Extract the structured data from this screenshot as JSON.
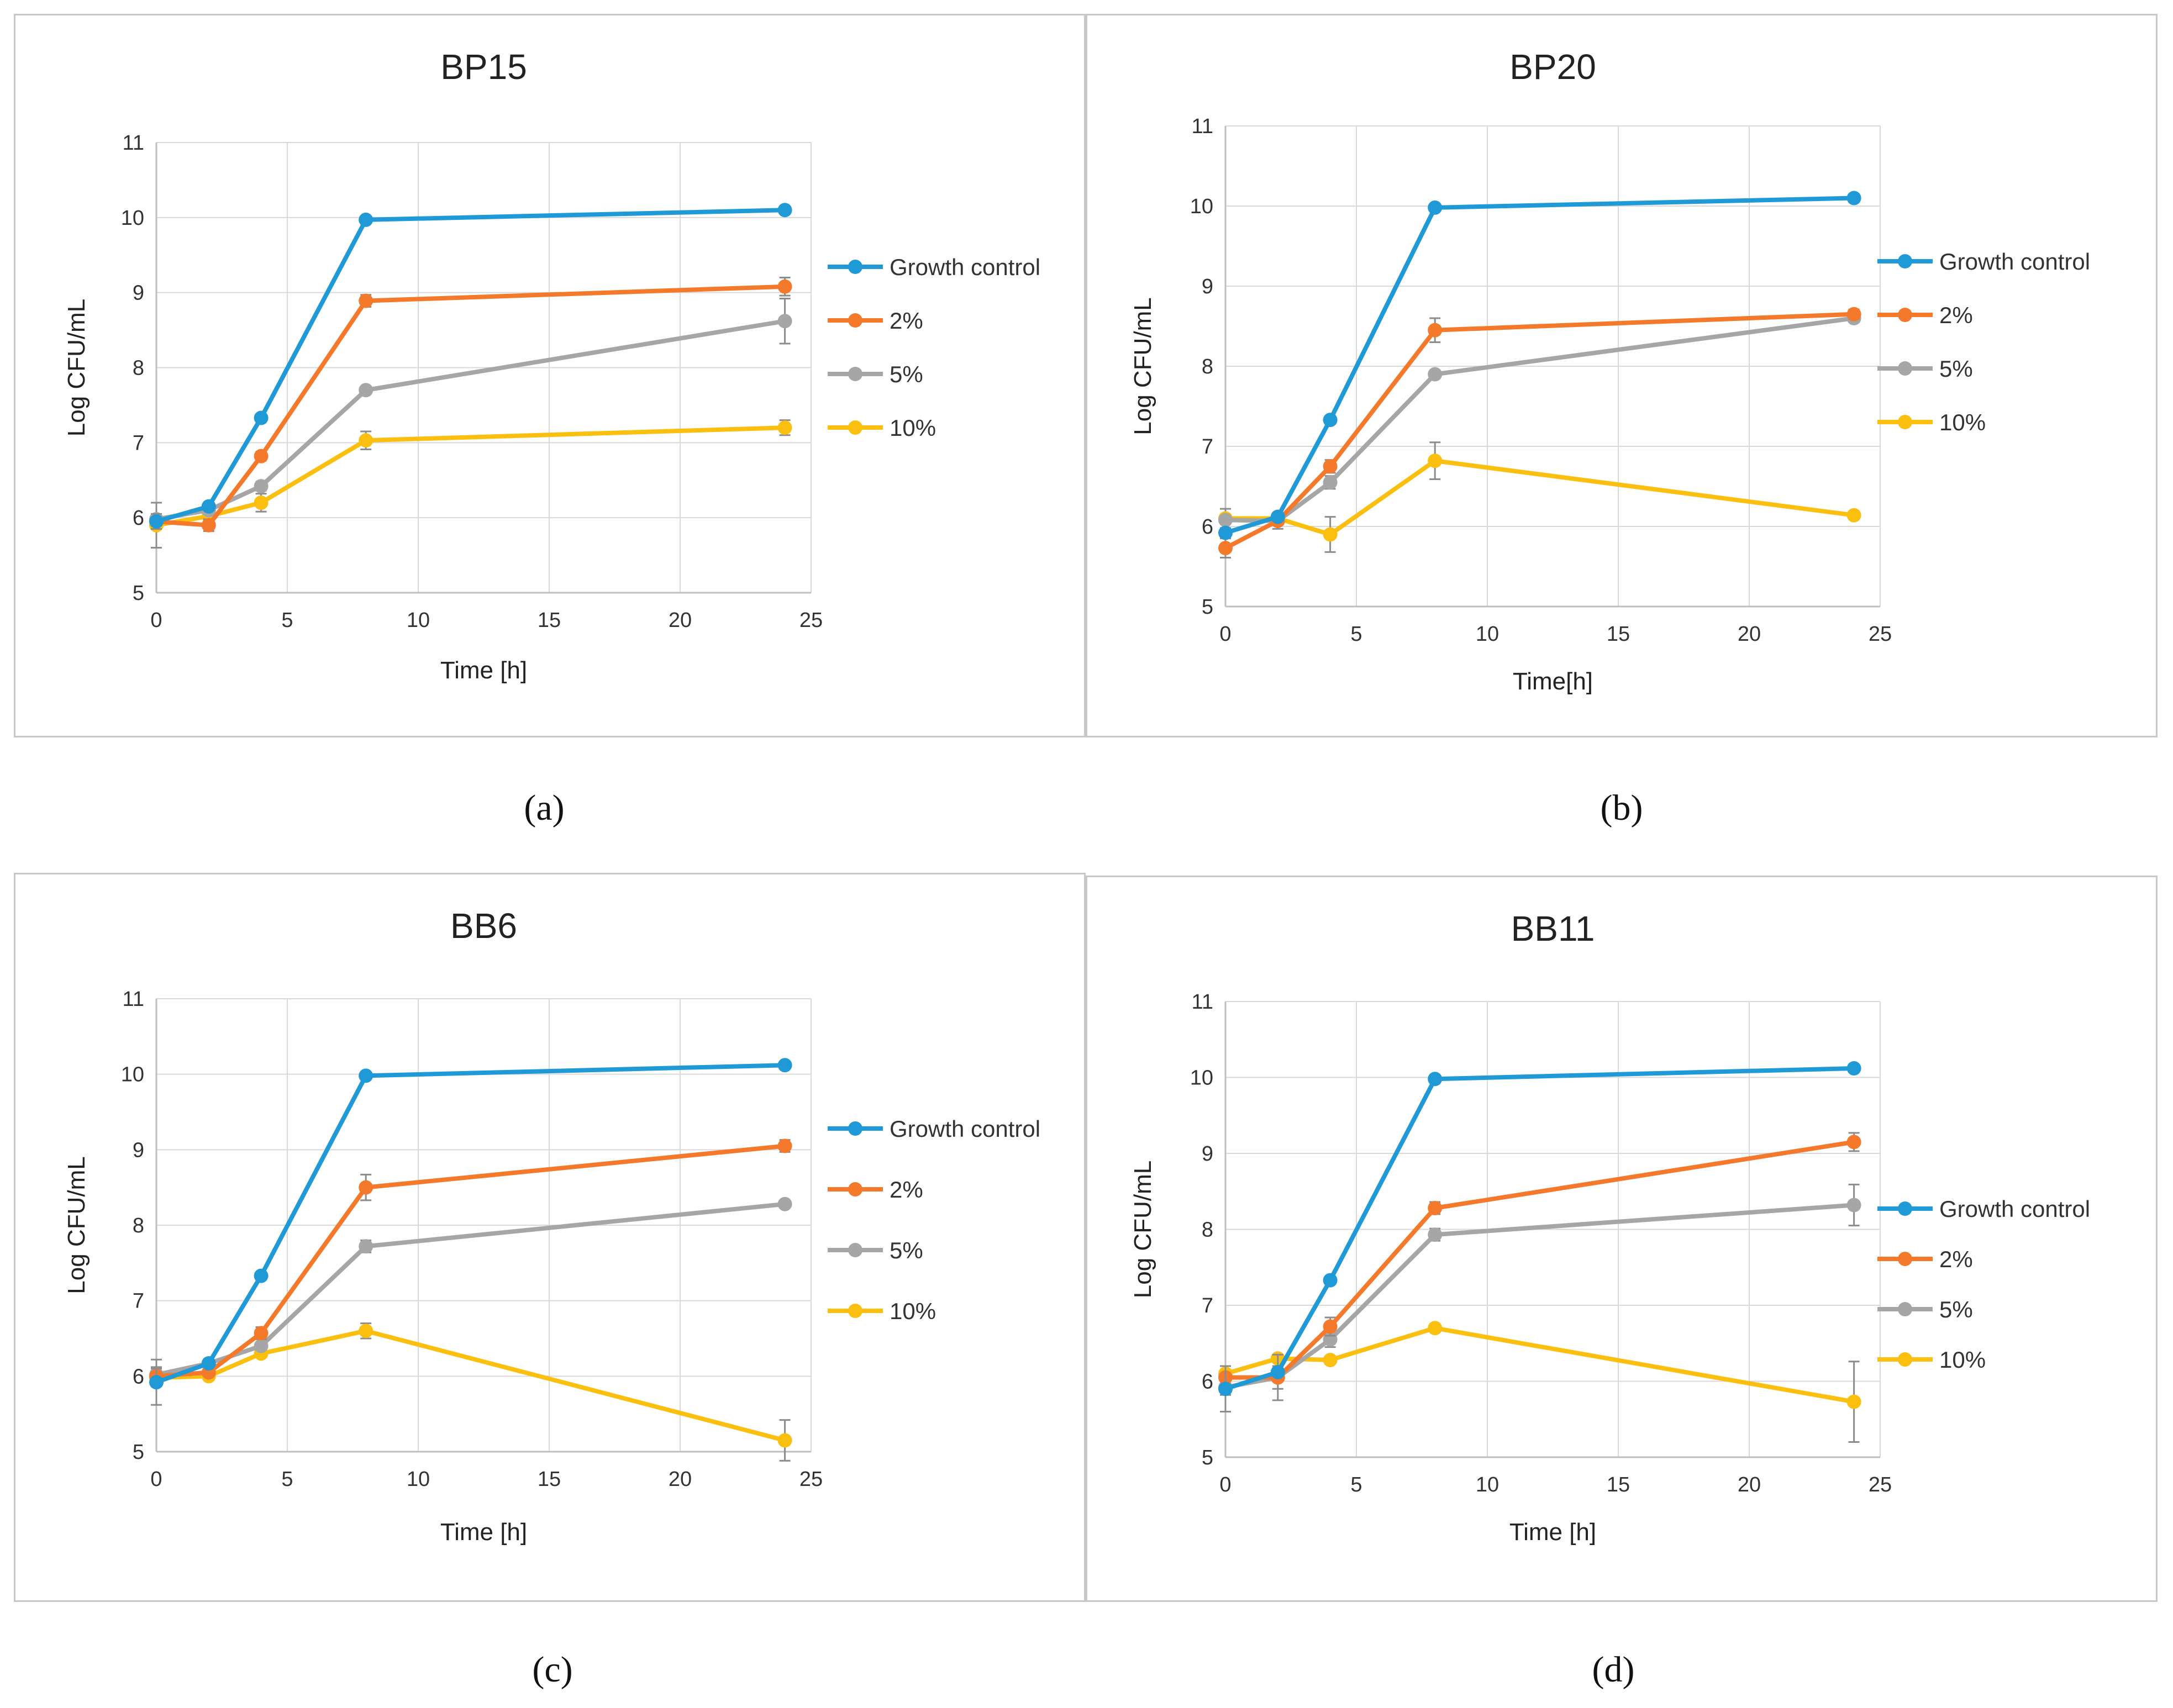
{
  "captions": [
    "(a)",
    "(b)",
    "(c)",
    "(d)"
  ],
  "colors": {
    "Growth control": "#1f9ad6",
    "2%": "#f4792a",
    "5%": "#a6a6a6",
    "10%": "#fbbf10",
    "grid": "#d9d9d9",
    "axis": "#bfbfbf",
    "error": "#8c8c8c"
  },
  "chart_data": [
    {
      "type": "line",
      "title": "BP15",
      "xlabel": "Time [h]",
      "ylabel": "Log CFU/mL",
      "xlim": [
        0,
        25
      ],
      "ylim": [
        5,
        11
      ],
      "xticks": [
        0,
        5,
        10,
        15,
        20,
        25
      ],
      "yticks": [
        5,
        6,
        7,
        8,
        9,
        10,
        11
      ],
      "grid": true,
      "legend": "right",
      "x": [
        0,
        2,
        4,
        8,
        24
      ],
      "series": [
        {
          "name": "Growth control",
          "values": [
            5.95,
            6.15,
            7.33,
            9.97,
            10.1
          ],
          "errors": [
            0.05,
            0.05,
            0.05,
            0.04,
            0.05
          ]
        },
        {
          "name": "2%",
          "values": [
            5.95,
            5.9,
            6.82,
            8.89,
            9.08
          ],
          "errors": [
            0.1,
            0.08,
            0.06,
            0.08,
            0.12
          ]
        },
        {
          "name": "5%",
          "values": [
            5.98,
            6.1,
            6.42,
            7.7,
            8.62
          ],
          "errors": [
            0.05,
            0.05,
            0.06,
            0.05,
            0.3
          ]
        },
        {
          "name": "10%",
          "values": [
            5.9,
            6.02,
            6.2,
            7.03,
            7.2
          ],
          "errors": [
            0.3,
            0.05,
            0.12,
            0.12,
            0.1
          ]
        }
      ]
    },
    {
      "type": "line",
      "title": "BP20",
      "xlabel": "Time[h]",
      "ylabel": "Log CFU/mL",
      "xlim": [
        0,
        25
      ],
      "ylim": [
        5,
        11
      ],
      "xticks": [
        0,
        5,
        10,
        15,
        20,
        25
      ],
      "yticks": [
        5,
        6,
        7,
        8,
        9,
        10,
        11
      ],
      "grid": true,
      "legend": "right",
      "x": [
        0,
        2,
        4,
        8,
        24
      ],
      "series": [
        {
          "name": "Growth control",
          "values": [
            5.92,
            6.12,
            7.33,
            9.98,
            10.1
          ],
          "errors": [
            0.05,
            0.05,
            0.05,
            0.04,
            0.05
          ]
        },
        {
          "name": "2%",
          "values": [
            5.73,
            6.07,
            6.75,
            8.45,
            8.65
          ],
          "errors": [
            0.12,
            0.1,
            0.08,
            0.15,
            0.06
          ]
        },
        {
          "name": "5%",
          "values": [
            6.08,
            6.07,
            6.55,
            7.9,
            8.6
          ],
          "errors": [
            0.05,
            0.05,
            0.08,
            0.05,
            0.05
          ]
        },
        {
          "name": "10%",
          "values": [
            6.1,
            6.1,
            5.9,
            6.82,
            6.14
          ],
          "errors": [
            0.12,
            0.05,
            0.22,
            0.23,
            0.05
          ]
        }
      ]
    },
    {
      "type": "line",
      "title": "BB6",
      "xlabel": "Time [h]",
      "ylabel": "Log CFU/mL",
      "xlim": [
        0,
        25
      ],
      "ylim": [
        5,
        11
      ],
      "xticks": [
        0,
        5,
        10,
        15,
        20,
        25
      ],
      "yticks": [
        5,
        6,
        7,
        8,
        9,
        10,
        11
      ],
      "grid": true,
      "legend": "right",
      "x": [
        0,
        2,
        4,
        8,
        24
      ],
      "series": [
        {
          "name": "Growth control",
          "values": [
            5.92,
            6.17,
            7.33,
            9.98,
            10.12
          ],
          "errors": [
            0.3,
            0.05,
            0.05,
            0.04,
            0.05
          ]
        },
        {
          "name": "2%",
          "values": [
            6.0,
            6.05,
            6.57,
            8.5,
            9.05
          ],
          "errors": [
            0.1,
            0.05,
            0.08,
            0.17,
            0.08
          ]
        },
        {
          "name": "5%",
          "values": [
            6.02,
            6.17,
            6.4,
            7.72,
            8.28
          ],
          "errors": [
            0.1,
            0.05,
            0.05,
            0.08,
            0.05
          ]
        },
        {
          "name": "10%",
          "values": [
            5.98,
            6.0,
            6.3,
            6.6,
            5.15
          ],
          "errors": [
            0.05,
            0.05,
            0.05,
            0.1,
            0.27
          ]
        }
      ]
    },
    {
      "type": "line",
      "title": "BB11",
      "xlabel": "Time [h]",
      "ylabel": "Log CFU/mL",
      "xlim": [
        0,
        25
      ],
      "ylim": [
        5,
        11
      ],
      "xticks": [
        0,
        5,
        10,
        15,
        20,
        25
      ],
      "yticks": [
        5,
        6,
        7,
        8,
        9,
        10,
        11
      ],
      "grid": true,
      "legend": "right",
      "x": [
        0,
        2,
        4,
        8,
        24
      ],
      "series": [
        {
          "name": "Growth control",
          "values": [
            5.9,
            6.12,
            7.33,
            9.98,
            10.12
          ],
          "errors": [
            0.3,
            0.05,
            0.05,
            0.04,
            0.05
          ]
        },
        {
          "name": "2%",
          "values": [
            6.05,
            6.05,
            6.72,
            8.28,
            9.15
          ],
          "errors": [
            0.15,
            0.15,
            0.12,
            0.08,
            0.12
          ]
        },
        {
          "name": "5%",
          "values": [
            5.92,
            6.05,
            6.55,
            7.93,
            8.32
          ],
          "errors": [
            0.1,
            0.3,
            0.1,
            0.08,
            0.27
          ]
        },
        {
          "name": "10%",
          "values": [
            6.1,
            6.3,
            6.28,
            6.7,
            5.73
          ],
          "errors": [
            0.1,
            0.05,
            0.05,
            0.05,
            0.53
          ]
        }
      ]
    }
  ]
}
